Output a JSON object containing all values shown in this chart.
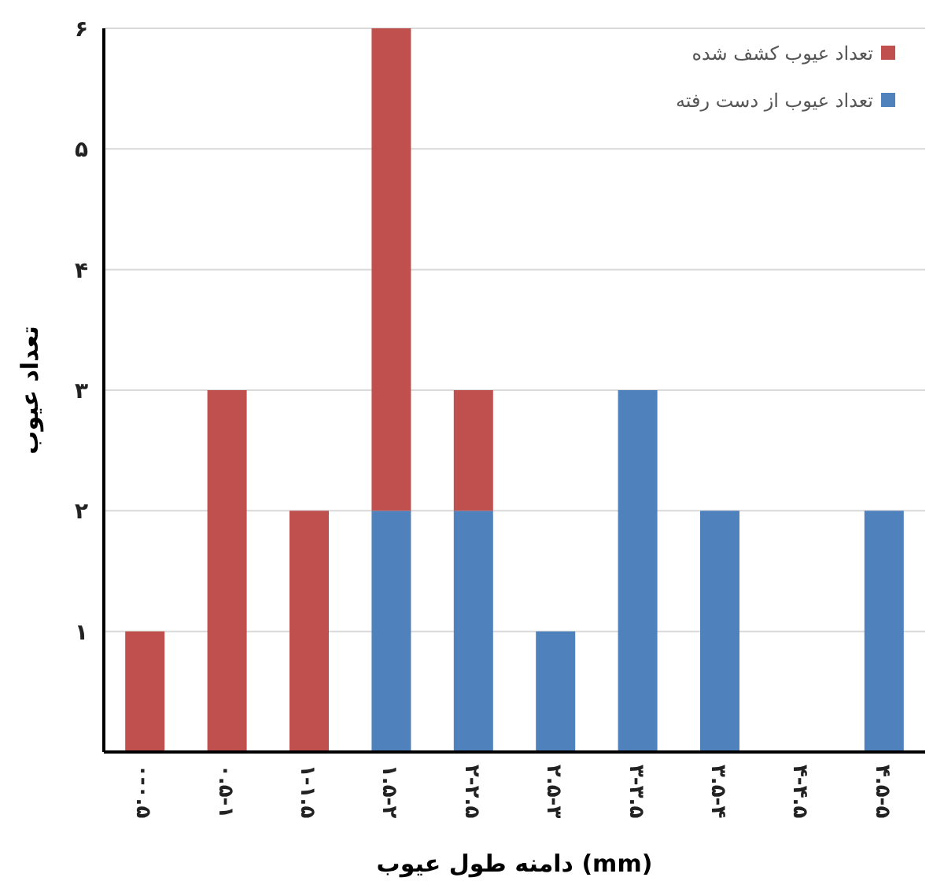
{
  "chart_data": {
    "type": "bar",
    "stacked": true,
    "xlabel": "دامنه طول عیوب (mm)",
    "ylabel": "تعداد عیوب",
    "categories": [
      "۰-۰.۵",
      "۰.۵-۱",
      "۱-۱.۵",
      "۱.۵-۲",
      "۲-۲.۵",
      "۲.۵-۳",
      "۳-۳.۵",
      "۳.۵-۴",
      "۴-۴.۵",
      "۴.۵-۵"
    ],
    "series": [
      {
        "name": "تعداد عیوب از دست رفته",
        "color": "#4f81bd",
        "values": [
          0,
          0,
          0,
          2,
          2,
          1,
          3,
          2,
          0,
          2
        ]
      },
      {
        "name": "تعداد عیوب کشف شده",
        "color": "#c0504d",
        "values": [
          1,
          3,
          2,
          4,
          1,
          0,
          0,
          0,
          0,
          0
        ]
      }
    ],
    "ylim": [
      0,
      6
    ],
    "yticks": [
      {
        "value": 1,
        "label": "۱"
      },
      {
        "value": 2,
        "label": "۲"
      },
      {
        "value": 3,
        "label": "۳"
      },
      {
        "value": 4,
        "label": "۴"
      },
      {
        "value": 5,
        "label": "۵"
      },
      {
        "value": 6,
        "label": "۶"
      }
    ],
    "grid": "y",
    "legend": "top right"
  }
}
